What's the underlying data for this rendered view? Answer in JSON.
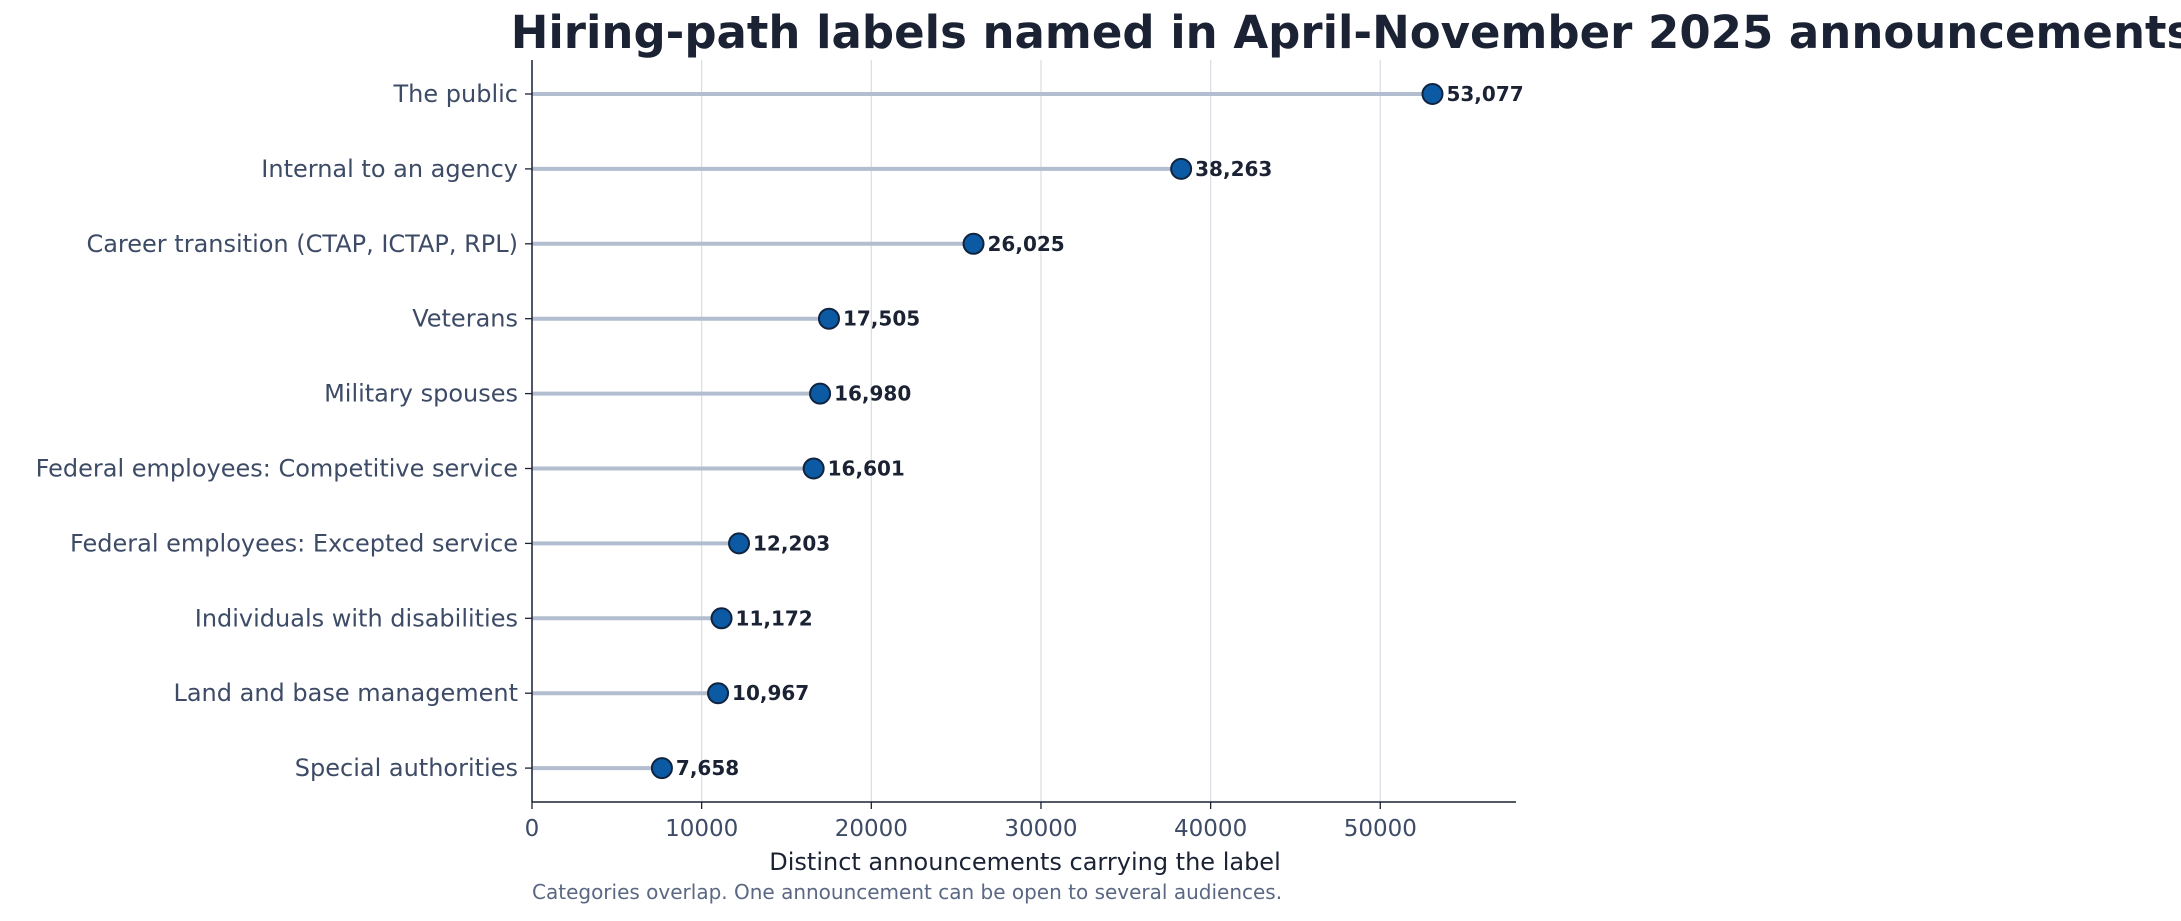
{
  "chart_data": {
    "type": "lollipop",
    "orientation": "horizontal",
    "title": "Hiring-path labels named in April-November 2025 announcements",
    "xlabel": "Distinct announcements carrying the label",
    "footnote": "Categories overlap. One announcement can be open to several audiences.",
    "xlim": [
      0,
      58000
    ],
    "xticks": [
      0,
      10000,
      20000,
      30000,
      40000,
      50000
    ],
    "grid": "vertical",
    "categories": [
      "The public",
      "Internal to an agency",
      "Career transition (CTAP, ICTAP, RPL)",
      "Veterans",
      "Military spouses",
      "Federal employees: Competitive service",
      "Federal employees: Excepted service",
      "Individuals with disabilities",
      "Land and base management",
      "Special authorities"
    ],
    "values": [
      53077,
      38263,
      26025,
      17505,
      16980,
      16601,
      12203,
      11172,
      10967,
      7658
    ],
    "value_labels": [
      "53,077",
      "38,263",
      "26,025",
      "17,505",
      "16,980",
      "16,601",
      "12,203",
      "11,172",
      "10,967",
      "7,658"
    ],
    "colors": {
      "title": "#1a2233",
      "marker_fill": "#0b5aa3",
      "marker_edge": "#10233f",
      "stem": "#b3bdd0",
      "category_text": "#3d4b66",
      "value_text": "#1a2233",
      "grid": "#dcdfe5",
      "axis": "#1a2233",
      "footnote": "#5a6883"
    }
  }
}
